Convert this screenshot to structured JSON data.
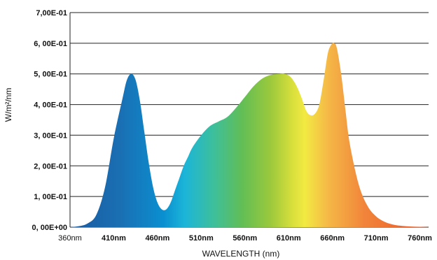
{
  "chart_data": {
    "type": "area",
    "title": "",
    "xlabel": "WAVELENGTH (nm)",
    "ylabel": "W/m²/nm",
    "xlim": [
      360,
      770
    ],
    "ylim": [
      0,
      0.7
    ],
    "grid": "horizontal",
    "x_ticks": [
      {
        "value": 360,
        "label": "360nm"
      },
      {
        "value": 410,
        "label": "410nm"
      },
      {
        "value": 460,
        "label": "460nm"
      },
      {
        "value": 510,
        "label": "510nm"
      },
      {
        "value": 560,
        "label": "560nm"
      },
      {
        "value": 610,
        "label": "610nm"
      },
      {
        "value": 660,
        "label": "660nm"
      },
      {
        "value": 710,
        "label": "710nm"
      },
      {
        "value": 760,
        "label": "760nm"
      }
    ],
    "y_ticks": [
      {
        "value": 0.0,
        "label": "0, 00E+00"
      },
      {
        "value": 0.1,
        "label": "1, 00E-01"
      },
      {
        "value": 0.2,
        "label": "2, 00E-01"
      },
      {
        "value": 0.3,
        "label": "3, 00E-01"
      },
      {
        "value": 0.4,
        "label": "4, 00E-01"
      },
      {
        "value": 0.5,
        "label": "5, 00E-01"
      },
      {
        "value": 0.6,
        "label": "6, 00E-01"
      },
      {
        "value": 0.7,
        "label": "7,00E-01"
      }
    ],
    "series": [
      {
        "x": [
          360,
          370,
          380,
          390,
          400,
          410,
          420,
          425,
          430,
          435,
          440,
          445,
          450,
          455,
          460,
          465,
          470,
          475,
          480,
          485,
          490,
          495,
          500,
          510,
          520,
          530,
          540,
          550,
          560,
          570,
          580,
          590,
          600,
          605,
          610,
          615,
          620,
          625,
          630,
          635,
          640,
          645,
          650,
          655,
          660,
          662,
          665,
          670,
          675,
          680,
          690,
          700,
          710,
          720,
          730,
          740,
          750,
          760,
          770
        ],
        "y": [
          0.0,
          0.003,
          0.012,
          0.04,
          0.13,
          0.29,
          0.42,
          0.48,
          0.5,
          0.48,
          0.41,
          0.31,
          0.21,
          0.13,
          0.08,
          0.058,
          0.058,
          0.08,
          0.12,
          0.16,
          0.2,
          0.23,
          0.26,
          0.3,
          0.33,
          0.345,
          0.36,
          0.39,
          0.425,
          0.46,
          0.485,
          0.497,
          0.5,
          0.5,
          0.495,
          0.48,
          0.455,
          0.42,
          0.38,
          0.365,
          0.37,
          0.4,
          0.48,
          0.57,
          0.6,
          0.6,
          0.585,
          0.5,
          0.38,
          0.27,
          0.14,
          0.07,
          0.035,
          0.017,
          0.008,
          0.004,
          0.002,
          0.001,
          0.0
        ]
      }
    ],
    "fill": "visible-spectrum-gradient"
  }
}
